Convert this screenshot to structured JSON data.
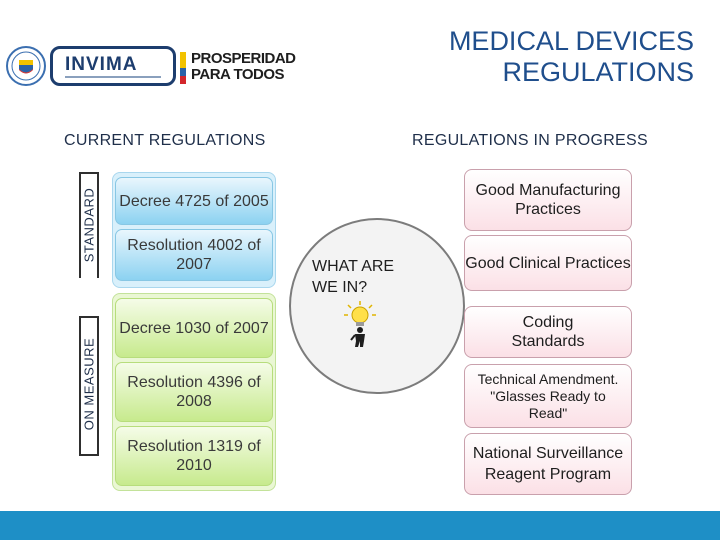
{
  "header": {
    "title_line1": "MEDICAL DEVICES",
    "title_line2": "REGULATIONS",
    "logo_invima_text": "INVIMA",
    "logo_prosperidad_line1": "PROSPERIDAD",
    "logo_prosperidad_line2": "PARA TODOS"
  },
  "current": {
    "heading": "CURRENT REGULATIONS",
    "standard_label": "STANDARD",
    "measure_label": "ON MEASURE",
    "standard_items": [
      "Decree 4725 of 2005",
      "Resolution 4002 of 2007"
    ],
    "measure_items": [
      "Decree 1030 of 2007",
      "Resolution 4396 of 2008",
      "Resolution 1319 of 2010"
    ]
  },
  "center": {
    "question": "WHAT ARE\nWE IN?"
  },
  "progress": {
    "heading": "REGULATIONS IN PROGRESS",
    "items": [
      "Good Manufacturing Practices",
      "Good Clinical Practices",
      "Coding Standards",
      "Technical Amendment. \"Glasses Ready to Read\"",
      "National Surveillance Reagent Program"
    ]
  },
  "colors": {
    "title": "#1f4e8c",
    "standard_fill": "#8cd2f1",
    "measure_fill": "#c7ea8d",
    "progress_fill": "#fbe0e6",
    "footer": "#1e8fc6"
  }
}
